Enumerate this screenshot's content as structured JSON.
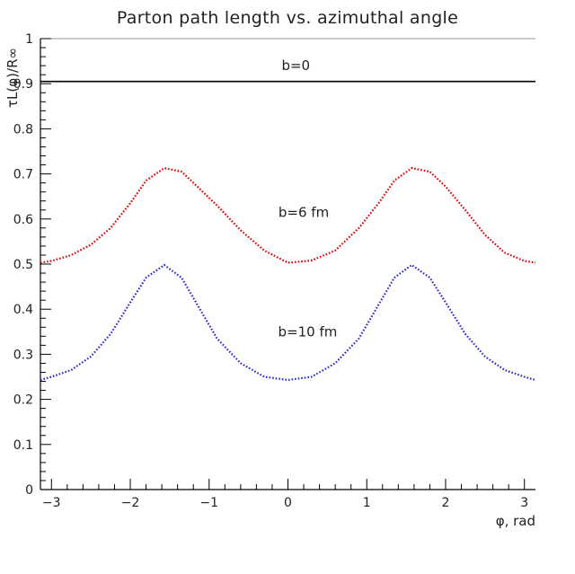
{
  "chart_data": {
    "type": "line",
    "title": "Parton path length vs. azimuthal angle",
    "xlabel": "φ, rad",
    "ylabel": "τL(φ)/R∞",
    "xlim": [
      -3.14,
      3.14
    ],
    "ylim": [
      0,
      1
    ],
    "xticks": [
      -3,
      -2,
      -1,
      0,
      1,
      2,
      3
    ],
    "xtick_labels": [
      "−3",
      "−2",
      "−1",
      "0",
      "1",
      "2",
      "3"
    ],
    "yticks": [
      0,
      0.1,
      0.2,
      0.3,
      0.4,
      0.5,
      0.6,
      0.7,
      0.8,
      0.9,
      1
    ],
    "ytick_labels": [
      "0",
      "0.1",
      "0.2",
      "0.3",
      "0.4",
      "0.5",
      "0.6",
      "0.7",
      "0.8",
      "0.9",
      "1"
    ],
    "grid": false,
    "series": [
      {
        "name": "b=0",
        "color": "#000000",
        "style": "solid",
        "x": [
          -3.14,
          -2.5,
          -2.0,
          -1.57,
          -1.0,
          -0.5,
          0,
          0.5,
          1.0,
          1.57,
          2.0,
          2.5,
          3.14
        ],
        "values": [
          0.905,
          0.905,
          0.905,
          0.905,
          0.905,
          0.905,
          0.905,
          0.905,
          0.905,
          0.905,
          0.905,
          0.905,
          0.905
        ]
      },
      {
        "name": "b=6 fm",
        "color": "#e00000",
        "style": "dotted",
        "x": [
          -3.14,
          -3.0,
          -2.75,
          -2.5,
          -2.25,
          -2.0,
          -1.8,
          -1.57,
          -1.35,
          -1.15,
          -0.9,
          -0.6,
          -0.3,
          0,
          0.3,
          0.6,
          0.9,
          1.15,
          1.35,
          1.57,
          1.8,
          2.0,
          2.25,
          2.5,
          2.75,
          3.0,
          3.14
        ],
        "values": [
          0.503,
          0.507,
          0.52,
          0.543,
          0.58,
          0.635,
          0.685,
          0.713,
          0.705,
          0.672,
          0.63,
          0.575,
          0.53,
          0.503,
          0.508,
          0.53,
          0.58,
          0.635,
          0.685,
          0.713,
          0.705,
          0.672,
          0.62,
          0.565,
          0.525,
          0.507,
          0.503
        ]
      },
      {
        "name": "b=10 fm",
        "color": "#2a2ad0",
        "style": "dotted",
        "x": [
          -3.14,
          -3.0,
          -2.75,
          -2.5,
          -2.25,
          -2.0,
          -1.8,
          -1.57,
          -1.35,
          -1.15,
          -0.9,
          -0.6,
          -0.3,
          0,
          0.3,
          0.6,
          0.9,
          1.15,
          1.35,
          1.57,
          1.8,
          2.0,
          2.25,
          2.5,
          2.75,
          3.0,
          3.14
        ],
        "values": [
          0.243,
          0.25,
          0.265,
          0.295,
          0.345,
          0.415,
          0.47,
          0.498,
          0.47,
          0.41,
          0.335,
          0.28,
          0.25,
          0.243,
          0.25,
          0.28,
          0.335,
          0.41,
          0.47,
          0.498,
          0.47,
          0.415,
          0.345,
          0.295,
          0.265,
          0.25,
          0.243
        ]
      }
    ],
    "annotations": [
      {
        "text": "b=0",
        "x": 0.1,
        "y": 0.93
      },
      {
        "text": "b=6 fm",
        "x": 0.2,
        "y": 0.605
      },
      {
        "text": "b=10 fm",
        "x": 0.25,
        "y": 0.34
      }
    ]
  }
}
